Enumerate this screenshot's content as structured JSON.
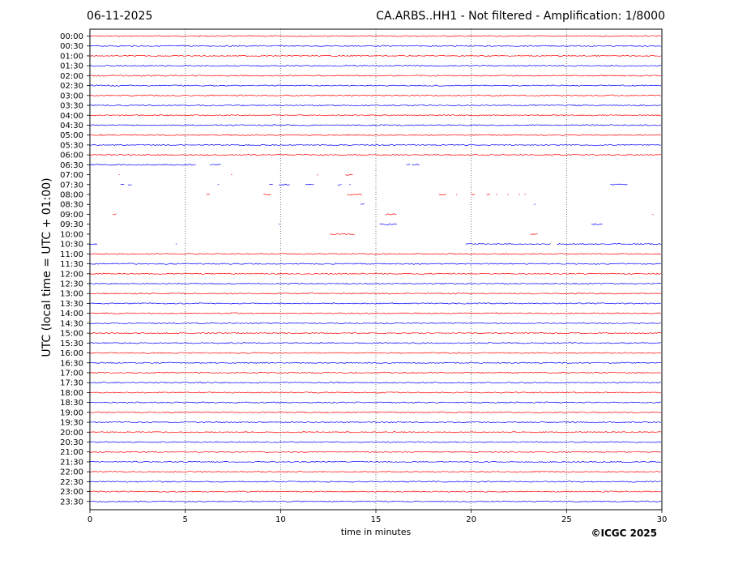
{
  "header": {
    "date": "06-11-2025",
    "title": "CA.ARBS..HH1 - Not filtered - Amplification: 1/8000"
  },
  "footer": {
    "copyright": "©ICGC 2025"
  },
  "chart_data": {
    "type": "line",
    "title": "CA.ARBS..HH1 - Not filtered - Amplification: 1/8000",
    "xlabel": "time in minutes",
    "ylabel": "UTC (local time = UTC + 01:00)",
    "xlim": [
      0,
      30
    ],
    "x_ticks": [
      "0",
      "5",
      "10",
      "15",
      "20",
      "25",
      "30"
    ],
    "grid": "vertical dotted lines at 5-minute intervals",
    "series_colors": [
      "#ff0000",
      "#0000ff"
    ],
    "traces": [
      {
        "label": "00:00",
        "color": "#ff0000",
        "segments": [
          [
            0,
            30
          ]
        ]
      },
      {
        "label": "00:30",
        "color": "#0000ff",
        "segments": [
          [
            0,
            30
          ]
        ]
      },
      {
        "label": "01:00",
        "color": "#ff0000",
        "segments": [
          [
            0,
            30
          ]
        ]
      },
      {
        "label": "01:30",
        "color": "#0000ff",
        "segments": [
          [
            0,
            30
          ]
        ]
      },
      {
        "label": "02:00",
        "color": "#ff0000",
        "segments": [
          [
            0,
            30
          ]
        ]
      },
      {
        "label": "02:30",
        "color": "#0000ff",
        "segments": [
          [
            0,
            30
          ]
        ]
      },
      {
        "label": "03:00",
        "color": "#ff0000",
        "segments": [
          [
            0,
            30
          ]
        ]
      },
      {
        "label": "03:30",
        "color": "#0000ff",
        "segments": [
          [
            0,
            30
          ]
        ]
      },
      {
        "label": "04:00",
        "color": "#ff0000",
        "segments": [
          [
            0,
            30
          ]
        ]
      },
      {
        "label": "04:30",
        "color": "#0000ff",
        "segments": [
          [
            0,
            30
          ]
        ]
      },
      {
        "label": "05:00",
        "color": "#ff0000",
        "segments": [
          [
            0,
            30
          ]
        ]
      },
      {
        "label": "05:30",
        "color": "#0000ff",
        "segments": [
          [
            0,
            30
          ]
        ]
      },
      {
        "label": "06:00",
        "color": "#ff0000",
        "segments": [
          [
            0,
            30
          ]
        ]
      },
      {
        "label": "06:30",
        "color": "#0000ff",
        "segments": [
          [
            0,
            5.6
          ],
          [
            6.3,
            6.9
          ],
          [
            16.6,
            16.8
          ],
          [
            16.9,
            17.3
          ]
        ]
      },
      {
        "label": "07:00",
        "color": "#ff0000",
        "segments": [
          [
            1.5,
            1.6
          ],
          [
            7.4,
            7.5
          ],
          [
            11.9,
            12.0
          ],
          [
            13.4,
            13.8
          ]
        ]
      },
      {
        "label": "07:30",
        "color": "#0000ff",
        "segments": [
          [
            1.6,
            1.8
          ],
          [
            2.0,
            2.2
          ],
          [
            6.7,
            6.8
          ],
          [
            9.4,
            9.6
          ],
          [
            9.9,
            10.5
          ],
          [
            11.3,
            11.8
          ],
          [
            13.0,
            13.2
          ],
          [
            13.6,
            13.7
          ],
          [
            27.3,
            28.2
          ]
        ]
      },
      {
        "label": "08:00",
        "color": "#ff0000",
        "segments": [
          [
            6.1,
            6.3
          ],
          [
            9.1,
            9.5
          ],
          [
            13.5,
            14.3
          ],
          [
            18.3,
            18.7
          ],
          [
            19.2,
            19.3
          ],
          [
            20.0,
            20.2
          ],
          [
            20.8,
            21.0
          ],
          [
            21.3,
            21.4
          ],
          [
            21.9,
            22.0
          ],
          [
            22.5,
            22.6
          ],
          [
            22.8,
            22.9
          ]
        ]
      },
      {
        "label": "08:30",
        "color": "#0000ff",
        "segments": [
          [
            14.2,
            14.4
          ],
          [
            23.3,
            23.4
          ]
        ]
      },
      {
        "label": "09:00",
        "color": "#ff0000",
        "segments": [
          [
            1.2,
            1.4
          ],
          [
            15.5,
            16.1
          ],
          [
            29.5,
            29.6
          ]
        ]
      },
      {
        "label": "09:30",
        "color": "#0000ff",
        "segments": [
          [
            9.9,
            10.0
          ],
          [
            15.2,
            16.1
          ],
          [
            26.3,
            26.9
          ]
        ]
      },
      {
        "label": "10:00",
        "color": "#ff0000",
        "segments": [
          [
            12.6,
            13.9
          ],
          [
            23.1,
            23.5
          ]
        ]
      },
      {
        "label": "10:30",
        "color": "#0000ff",
        "segments": [
          [
            0,
            0.4
          ],
          [
            4.5,
            4.6
          ],
          [
            19.7,
            24.2
          ],
          [
            24.5,
            30
          ]
        ]
      },
      {
        "label": "11:00",
        "color": "#ff0000",
        "segments": [
          [
            0,
            30
          ]
        ]
      },
      {
        "label": "11:30",
        "color": "#0000ff",
        "segments": [
          [
            0,
            30
          ]
        ]
      },
      {
        "label": "12:00",
        "color": "#ff0000",
        "segments": [
          [
            0,
            30
          ]
        ]
      },
      {
        "label": "12:30",
        "color": "#0000ff",
        "segments": [
          [
            0,
            30
          ]
        ]
      },
      {
        "label": "13:00",
        "color": "#ff0000",
        "segments": [
          [
            0,
            30
          ]
        ]
      },
      {
        "label": "13:30",
        "color": "#0000ff",
        "segments": [
          [
            0,
            30
          ]
        ]
      },
      {
        "label": "14:00",
        "color": "#ff0000",
        "segments": [
          [
            0,
            30
          ]
        ]
      },
      {
        "label": "14:30",
        "color": "#0000ff",
        "segments": [
          [
            0,
            30
          ]
        ]
      },
      {
        "label": "15:00",
        "color": "#ff0000",
        "segments": [
          [
            0,
            30
          ]
        ]
      },
      {
        "label": "15:30",
        "color": "#0000ff",
        "segments": [
          [
            0,
            30
          ]
        ]
      },
      {
        "label": "16:00",
        "color": "#ff0000",
        "segments": [
          [
            0,
            30
          ]
        ]
      },
      {
        "label": "16:30",
        "color": "#0000ff",
        "segments": [
          [
            0,
            30
          ]
        ]
      },
      {
        "label": "17:00",
        "color": "#ff0000",
        "segments": [
          [
            0,
            30
          ]
        ]
      },
      {
        "label": "17:30",
        "color": "#0000ff",
        "segments": [
          [
            0,
            30
          ]
        ]
      },
      {
        "label": "18:00",
        "color": "#ff0000",
        "segments": [
          [
            0,
            30
          ]
        ]
      },
      {
        "label": "18:30",
        "color": "#0000ff",
        "segments": [
          [
            0,
            30
          ]
        ]
      },
      {
        "label": "19:00",
        "color": "#ff0000",
        "segments": [
          [
            0,
            30
          ]
        ]
      },
      {
        "label": "19:30",
        "color": "#0000ff",
        "segments": [
          [
            0,
            30
          ]
        ]
      },
      {
        "label": "20:00",
        "color": "#ff0000",
        "segments": [
          [
            0,
            30
          ]
        ]
      },
      {
        "label": "20:30",
        "color": "#0000ff",
        "segments": [
          [
            0,
            30
          ]
        ]
      },
      {
        "label": "21:00",
        "color": "#ff0000",
        "segments": [
          [
            0,
            30
          ]
        ]
      },
      {
        "label": "21:30",
        "color": "#0000ff",
        "segments": [
          [
            0,
            30
          ]
        ]
      },
      {
        "label": "22:00",
        "color": "#ff0000",
        "segments": [
          [
            0,
            30
          ]
        ]
      },
      {
        "label": "22:30",
        "color": "#0000ff",
        "segments": [
          [
            0,
            30
          ]
        ]
      },
      {
        "label": "23:00",
        "color": "#ff0000",
        "segments": [
          [
            0,
            30
          ]
        ]
      },
      {
        "label": "23:30",
        "color": "#0000ff",
        "segments": [
          [
            0,
            30
          ]
        ]
      }
    ]
  }
}
